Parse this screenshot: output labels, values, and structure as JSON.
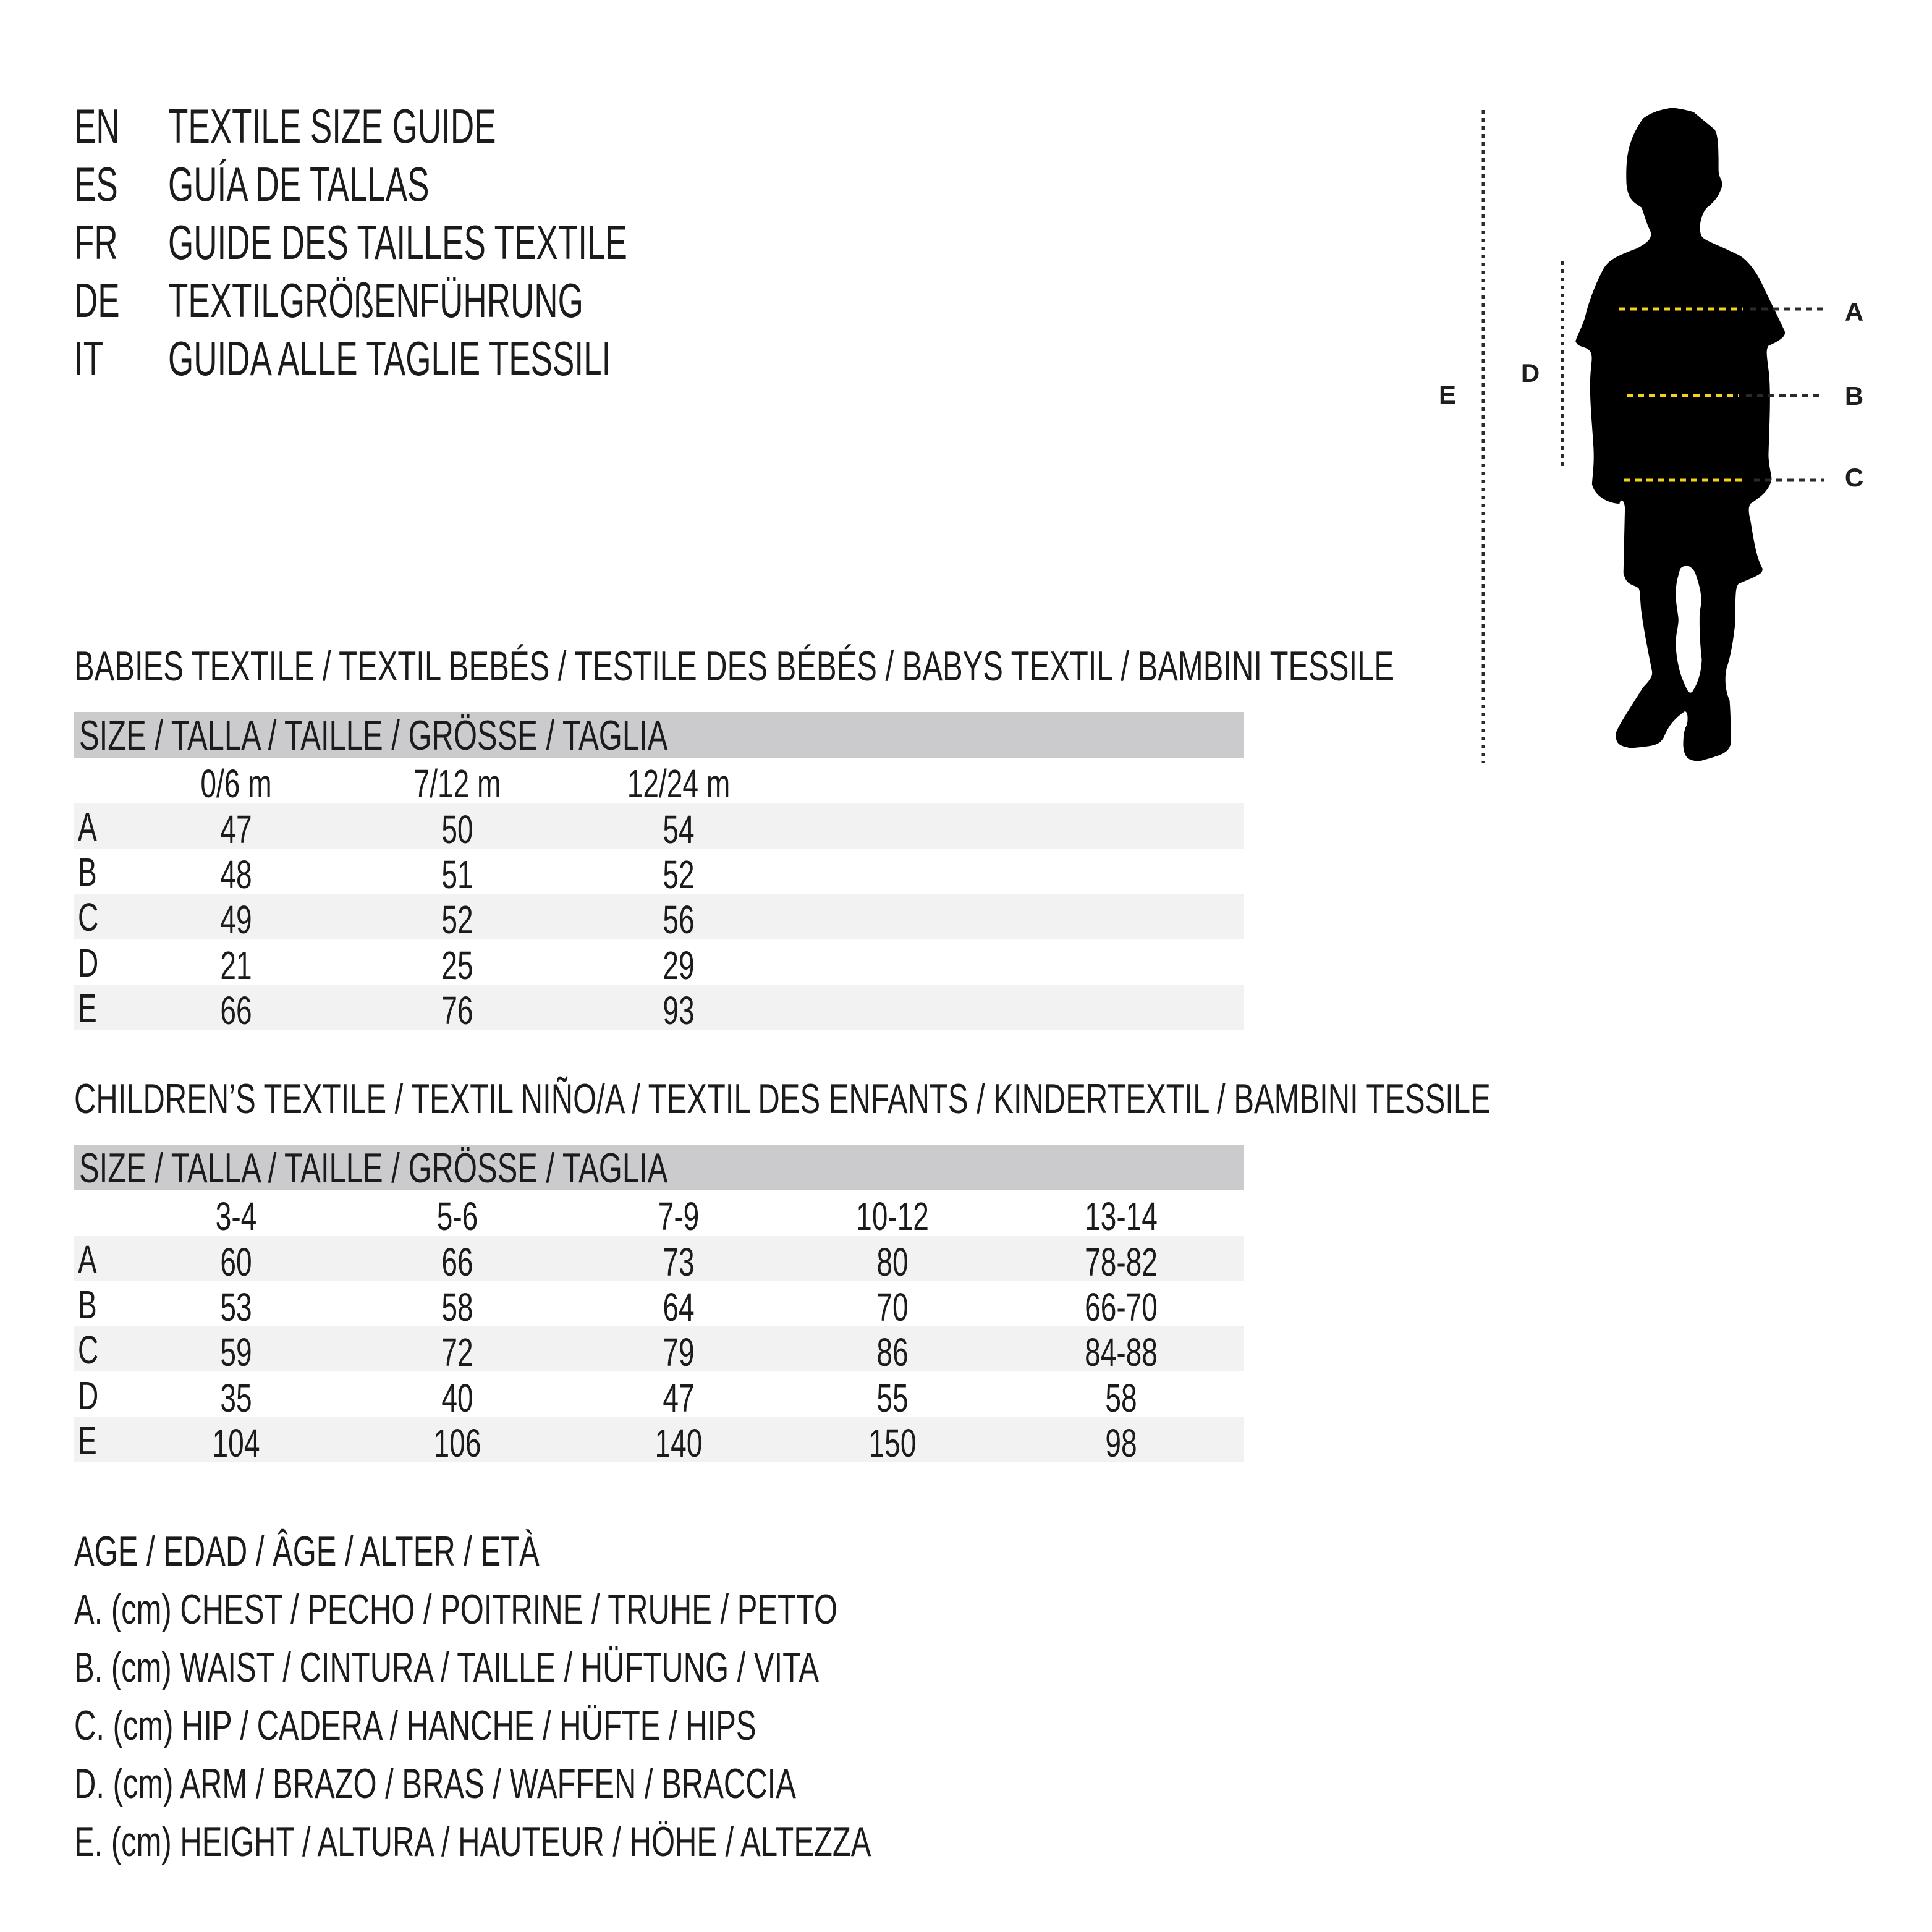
{
  "titles": [
    {
      "code": "EN",
      "text": "TEXTILE SIZE GUIDE"
    },
    {
      "code": "ES",
      "text": "GUÍA DE TALLAS"
    },
    {
      "code": "FR",
      "text": "GUIDE DES TAILLES TEXTILE"
    },
    {
      "code": "DE",
      "text": "TEXTILGRÖßENFÜHRUNG"
    },
    {
      "code": "IT",
      "text": "GUIDA ALLE TAGLIE TESSILI"
    }
  ],
  "babies": {
    "heading": "BABIES TEXTILE / TEXTIL BEBÉS / TESTILE DES BÉBÉS / BABYS TEXTIL / BAMBINI TESSILE",
    "size_header": "SIZE / TALLA / TAILLE / GRÖSSE / TAGLIA",
    "columns": [
      "0/6 m",
      "7/12 m",
      "12/24 m"
    ],
    "rows": [
      {
        "label": "A",
        "values": [
          "47",
          "50",
          "54"
        ]
      },
      {
        "label": "B",
        "values": [
          "48",
          "51",
          "52"
        ]
      },
      {
        "label": "C",
        "values": [
          "49",
          "52",
          "56"
        ]
      },
      {
        "label": "D",
        "values": [
          "21",
          "25",
          "29"
        ]
      },
      {
        "label": "E",
        "values": [
          "66",
          "76",
          "93"
        ]
      }
    ]
  },
  "children": {
    "heading": "CHILDREN’S TEXTILE / TEXTIL NIÑO/A / TEXTIL DES ENFANTS / KINDERTEXTIL / BAMBINI TESSILE",
    "size_header": "SIZE / TALLA / TAILLE / GRÖSSE / TAGLIA",
    "columns": [
      "3-4",
      "5-6",
      "7-9",
      "10-12",
      "13-14"
    ],
    "rows": [
      {
        "label": "A",
        "values": [
          "60",
          "66",
          "73",
          "80",
          "78-82"
        ]
      },
      {
        "label": "B",
        "values": [
          "53",
          "58",
          "64",
          "70",
          "66-70"
        ]
      },
      {
        "label": "C",
        "values": [
          "59",
          "72",
          "79",
          "86",
          "84-88"
        ]
      },
      {
        "label": "D",
        "values": [
          "35",
          "40",
          "47",
          "55",
          "58"
        ]
      },
      {
        "label": "E",
        "values": [
          "104",
          "106",
          "140",
          "150",
          "98"
        ]
      }
    ]
  },
  "legend": [
    "AGE / EDAD / ÂGE / ALTER / ETÀ",
    "A. (cm) CHEST / PECHO / POITRINE / TRUHE / PETTO",
    "B. (cm) WAIST / CINTURA / TAILLE / HÜFTUNG / VITA",
    "C. (cm) HIP / CADERA / HANCHE / HÜFTE / HIPS",
    "D. (cm) ARM / BRAZO / BRAS / WAFFEN / BRACCIA",
    "E. (cm) HEIGHT / ALTURA / HAUTEUR / HÖHE / ALTEZZA"
  ],
  "figure": {
    "labels": {
      "A": "A",
      "B": "B",
      "C": "C",
      "D": "D",
      "E": "E"
    },
    "icon": "child-silhouette-icon",
    "colors": {
      "measure_line": "#f2d21b",
      "guide_line": "#2a2a2a",
      "silhouette": "#000000",
      "header_bar": "#cbcbcd",
      "row_band": "#f2f2f2"
    }
  }
}
